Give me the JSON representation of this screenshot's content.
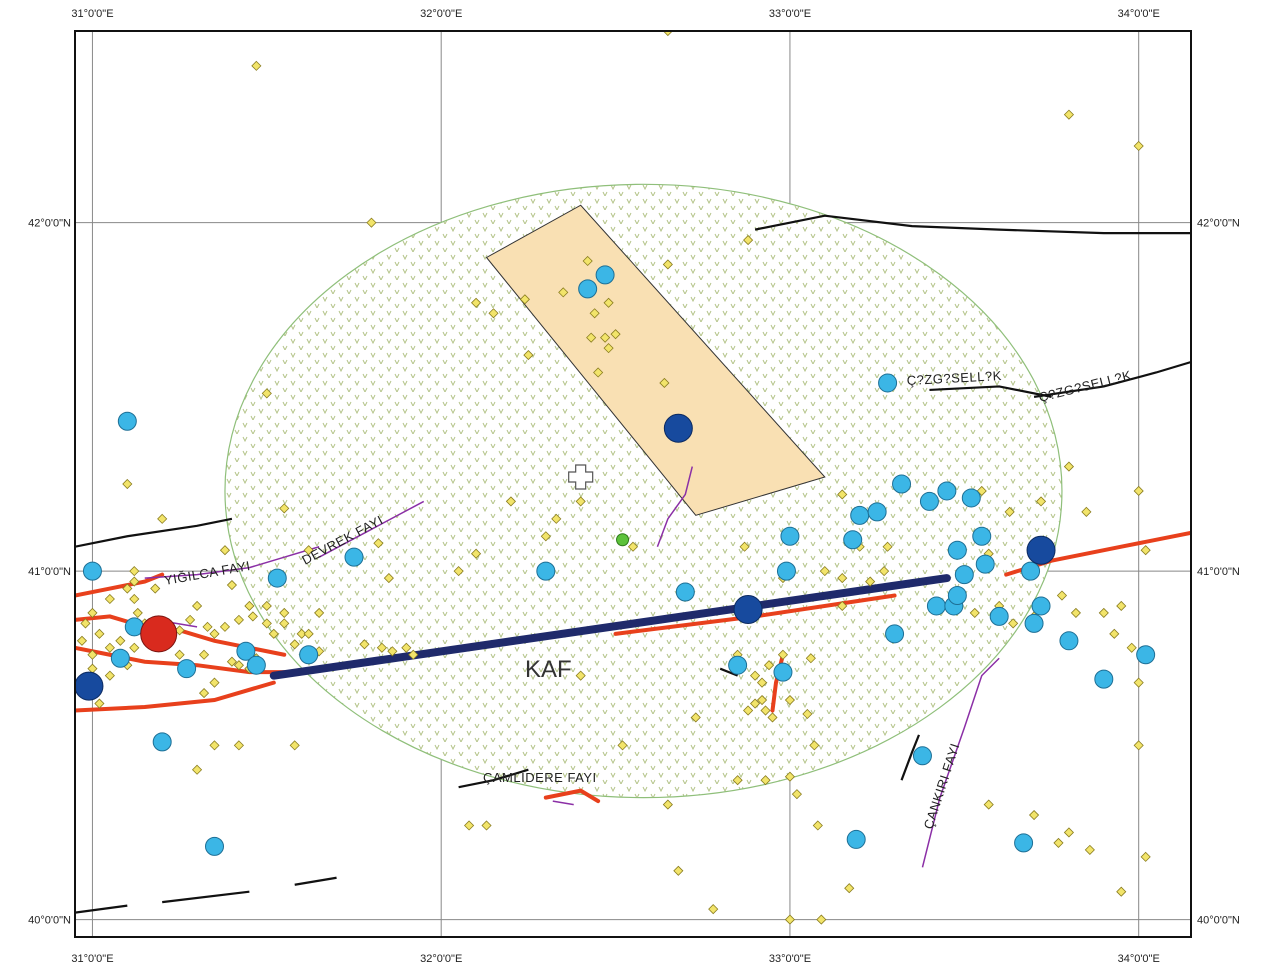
{
  "map": {
    "lon_range": [
      30.95,
      34.15
    ],
    "lat_range": [
      39.95,
      42.55
    ],
    "lon_ticks": [
      {
        "value": 31,
        "label": "31°0'0\"E"
      },
      {
        "value": 32,
        "label": "32°0'0\"E"
      },
      {
        "value": 33,
        "label": "33°0'0\"E"
      },
      {
        "value": 34,
        "label": "34°0'0\"E"
      }
    ],
    "lat_ticks": [
      {
        "value": 40,
        "label": "40°0'0\"N"
      },
      {
        "value": 41,
        "label": "41°0'0\"N"
      },
      {
        "value": 42,
        "label": "42°0'0\"N"
      }
    ],
    "colors": {
      "grid": "#888888",
      "buffer_stroke": "#8fbf7a",
      "buffer_dot": "#b5c48a",
      "rectangle_fill": "#f9e0b3",
      "kaf_line": "#1f2a6b",
      "red_fault": "#e8401c",
      "purple_fault": "#8b2fa6",
      "black_fault": "#111111",
      "small_quake": "#f2e46a",
      "medium_quake": "#3bb6e6",
      "large_quake": "#174a9e",
      "largest_quake": "#d92a1e",
      "green_point": "#5cc23a"
    },
    "labels": {
      "kaf": "KAF",
      "yigilca": "YIĞILCA FAYI",
      "devrek": "DEVREK FAYI",
      "camlidere": "ÇAMLIDERE FAYI",
      "cankiri": "ÇANKIRI FAYI",
      "cizgisellik_1": "Ç?ZG?SELL?K",
      "cizgisellik_2": "Ç?ZG?SELL?K"
    },
    "center_marker": {
      "lon": 32.4,
      "lat": 41.27
    },
    "green_point": {
      "lon": 32.52,
      "lat": 41.09
    },
    "buffer": {
      "center_lon": 32.58,
      "center_lat": 41.23,
      "radius_lon": 1.2,
      "radius_lat": 0.88
    },
    "rectangle": [
      {
        "lon": 32.13,
        "lat": 41.9
      },
      {
        "lon": 32.4,
        "lat": 42.05
      },
      {
        "lon": 33.1,
        "lat": 41.27
      },
      {
        "lon": 32.73,
        "lat": 41.16
      }
    ],
    "kaf_line": [
      {
        "lon": 31.52,
        "lat": 40.7
      },
      {
        "lon": 33.45,
        "lat": 40.98
      }
    ],
    "small_quakes": [
      [
        31.47,
        42.45
      ],
      [
        32.65,
        42.55
      ],
      [
        33.8,
        42.31
      ],
      [
        34.0,
        42.22
      ],
      [
        31.8,
        42.0
      ],
      [
        32.1,
        41.77
      ],
      [
        32.15,
        41.74
      ],
      [
        32.25,
        41.62
      ],
      [
        32.24,
        41.78
      ],
      [
        32.35,
        41.8
      ],
      [
        32.42,
        41.89
      ],
      [
        32.44,
        41.74
      ],
      [
        32.48,
        41.77
      ],
      [
        32.47,
        41.67
      ],
      [
        32.5,
        41.68
      ],
      [
        32.43,
        41.67
      ],
      [
        32.48,
        41.64
      ],
      [
        32.45,
        41.57
      ],
      [
        32.65,
        41.88
      ],
      [
        32.64,
        41.54
      ],
      [
        32.88,
        41.95
      ],
      [
        31.5,
        41.51
      ],
      [
        31.1,
        41.25
      ],
      [
        31.2,
        41.15
      ],
      [
        31.55,
        41.18
      ],
      [
        32.2,
        41.2
      ],
      [
        32.4,
        41.2
      ],
      [
        32.33,
        41.15
      ],
      [
        32.3,
        41.1
      ],
      [
        31.38,
        41.06
      ],
      [
        31.62,
        41.06
      ],
      [
        31.82,
        41.08
      ],
      [
        32.1,
        41.05
      ],
      [
        32.55,
        41.07
      ],
      [
        33.15,
        41.22
      ],
      [
        33.2,
        41.07
      ],
      [
        33.28,
        41.07
      ],
      [
        33.55,
        41.23
      ],
      [
        33.57,
        41.05
      ],
      [
        33.63,
        41.17
      ],
      [
        33.72,
        41.2
      ],
      [
        33.8,
        41.3
      ],
      [
        33.85,
        41.17
      ],
      [
        34.0,
        41.23
      ],
      [
        34.02,
        41.06
      ],
      [
        32.87,
        41.07
      ],
      [
        33.1,
        41.0
      ],
      [
        33.15,
        40.98
      ],
      [
        32.98,
        40.98
      ],
      [
        33.23,
        40.97
      ],
      [
        33.27,
        41.0
      ],
      [
        33.53,
        40.88
      ],
      [
        33.6,
        40.9
      ],
      [
        33.64,
        40.85
      ],
      [
        33.7,
        40.87
      ],
      [
        33.78,
        40.93
      ],
      [
        33.82,
        40.88
      ],
      [
        33.9,
        40.88
      ],
      [
        33.95,
        40.9
      ],
      [
        33.93,
        40.82
      ],
      [
        33.98,
        40.78
      ],
      [
        34.0,
        40.68
      ],
      [
        34.0,
        40.5
      ],
      [
        34.02,
        40.18
      ],
      [
        33.95,
        40.08
      ],
      [
        33.8,
        40.25
      ],
      [
        33.77,
        40.22
      ],
      [
        33.86,
        40.2
      ],
      [
        33.7,
        40.3
      ],
      [
        33.57,
        40.33
      ],
      [
        33.08,
        40.27
      ],
      [
        33.02,
        40.36
      ],
      [
        32.93,
        40.4
      ],
      [
        33.07,
        40.5
      ],
      [
        33.05,
        40.59
      ],
      [
        33.0,
        40.63
      ],
      [
        32.95,
        40.58
      ],
      [
        32.93,
        40.6
      ],
      [
        32.92,
        40.63
      ],
      [
        32.9,
        40.62
      ],
      [
        32.88,
        40.6
      ],
      [
        32.92,
        40.68
      ],
      [
        32.9,
        40.7
      ],
      [
        32.94,
        40.73
      ],
      [
        32.98,
        40.76
      ],
      [
        32.97,
        40.71
      ],
      [
        33.06,
        40.75
      ],
      [
        32.85,
        40.76
      ],
      [
        32.73,
        40.58
      ],
      [
        32.4,
        40.7
      ],
      [
        32.52,
        40.5
      ],
      [
        32.65,
        40.33
      ],
      [
        32.08,
        40.27
      ],
      [
        32.13,
        40.27
      ],
      [
        32.68,
        40.14
      ],
      [
        32.78,
        40.03
      ],
      [
        33.0,
        40.0
      ],
      [
        33.09,
        40.0
      ],
      [
        33.17,
        40.09
      ],
      [
        31.3,
        40.43
      ],
      [
        31.42,
        40.5
      ],
      [
        31.35,
        40.5
      ],
      [
        31.58,
        40.5
      ],
      [
        31.32,
        40.65
      ],
      [
        31.35,
        40.82
      ],
      [
        31.33,
        40.84
      ],
      [
        31.38,
        40.84
      ],
      [
        31.42,
        40.86
      ],
      [
        31.46,
        40.87
      ],
      [
        31.5,
        40.85
      ],
      [
        31.52,
        40.82
      ],
      [
        31.55,
        40.85
      ],
      [
        31.45,
        40.9
      ],
      [
        31.5,
        40.9
      ],
      [
        31.55,
        40.88
      ],
      [
        31.6,
        40.82
      ],
      [
        31.65,
        40.88
      ],
      [
        31.47,
        40.75
      ],
      [
        31.45,
        40.72
      ],
      [
        31.35,
        40.68
      ],
      [
        31.4,
        40.74
      ],
      [
        31.42,
        40.73
      ],
      [
        31.1,
        40.95
      ],
      [
        31.05,
        40.92
      ],
      [
        31.12,
        40.92
      ],
      [
        31.0,
        40.88
      ],
      [
        30.98,
        40.85
      ],
      [
        31.02,
        40.82
      ],
      [
        31.05,
        40.78
      ],
      [
        31.08,
        40.8
      ],
      [
        31.12,
        40.78
      ],
      [
        31.15,
        40.85
      ],
      [
        31.1,
        40.73
      ],
      [
        31.05,
        40.7
      ],
      [
        31.0,
        40.72
      ],
      [
        31.0,
        40.76
      ],
      [
        30.97,
        40.8
      ],
      [
        31.13,
        40.88
      ],
      [
        31.2,
        40.84
      ],
      [
        31.25,
        40.83
      ],
      [
        31.28,
        40.86
      ],
      [
        31.3,
        40.9
      ],
      [
        31.18,
        40.95
      ],
      [
        31.12,
        40.97
      ],
      [
        31.25,
        40.76
      ],
      [
        31.32,
        40.76
      ],
      [
        31.02,
        40.62
      ],
      [
        31.4,
        40.96
      ],
      [
        31.12,
        41.0
      ],
      [
        31.78,
        40.79
      ],
      [
        31.83,
        40.78
      ],
      [
        31.86,
        40.77
      ],
      [
        31.9,
        40.78
      ],
      [
        31.92,
        40.76
      ],
      [
        31.58,
        40.79
      ],
      [
        31.62,
        40.82
      ],
      [
        31.65,
        40.77
      ],
      [
        31.85,
        40.98
      ],
      [
        32.05,
        41.0
      ],
      [
        33.0,
        40.41
      ],
      [
        32.85,
        40.4
      ],
      [
        33.15,
        40.9
      ]
    ],
    "medium_quakes": [
      [
        31.1,
        41.43
      ],
      [
        31.0,
        41.0
      ],
      [
        31.12,
        40.84
      ],
      [
        31.08,
        40.75
      ],
      [
        31.27,
        40.72
      ],
      [
        31.44,
        40.77
      ],
      [
        31.47,
        40.73
      ],
      [
        31.62,
        40.76
      ],
      [
        31.53,
        40.98
      ],
      [
        31.75,
        41.04
      ],
      [
        31.2,
        40.51
      ],
      [
        31.35,
        40.21
      ],
      [
        32.3,
        41.0
      ],
      [
        32.42,
        41.81
      ],
      [
        32.47,
        41.85
      ],
      [
        32.7,
        40.94
      ],
      [
        32.68,
        41.41
      ],
      [
        32.85,
        40.73
      ],
      [
        33.0,
        41.1
      ],
      [
        32.99,
        41.0
      ],
      [
        32.98,
        40.71
      ],
      [
        33.18,
        41.09
      ],
      [
        33.2,
        41.16
      ],
      [
        33.25,
        41.17
      ],
      [
        33.28,
        41.54
      ],
      [
        33.3,
        40.82
      ],
      [
        33.32,
        41.25
      ],
      [
        33.4,
        41.2
      ],
      [
        33.45,
        41.23
      ],
      [
        33.48,
        41.06
      ],
      [
        33.5,
        40.99
      ],
      [
        33.52,
        41.21
      ],
      [
        33.55,
        41.1
      ],
      [
        33.56,
        41.02
      ],
      [
        33.6,
        40.87
      ],
      [
        33.42,
        40.9
      ],
      [
        33.47,
        40.9
      ],
      [
        33.48,
        40.93
      ],
      [
        33.69,
        41.0
      ],
      [
        33.7,
        40.85
      ],
      [
        33.72,
        40.9
      ],
      [
        33.8,
        40.8
      ],
      [
        33.9,
        40.69
      ],
      [
        34.02,
        40.76
      ],
      [
        33.19,
        40.23
      ],
      [
        33.67,
        40.22
      ],
      [
        33.38,
        40.47
      ]
    ],
    "large_quakes": [
      [
        30.99,
        40.67
      ],
      [
        32.68,
        41.41
      ],
      [
        32.88,
        40.89
      ],
      [
        33.72,
        41.06
      ]
    ],
    "largest_quakes": [
      [
        31.19,
        40.82
      ]
    ],
    "red_faults": [
      [
        [
          30.95,
          40.93
        ],
        [
          31.05,
          40.95
        ],
        [
          31.15,
          40.97
        ],
        [
          31.2,
          40.99
        ]
      ],
      [
        [
          30.95,
          40.86
        ],
        [
          31.05,
          40.87
        ],
        [
          31.15,
          40.84
        ],
        [
          31.25,
          40.83
        ],
        [
          31.35,
          40.8
        ],
        [
          31.45,
          40.78
        ],
        [
          31.55,
          40.76
        ]
      ],
      [
        [
          30.95,
          40.78
        ],
        [
          31.05,
          40.76
        ],
        [
          31.15,
          40.74
        ],
        [
          31.3,
          40.73
        ],
        [
          31.45,
          40.71
        ],
        [
          31.6,
          40.71
        ]
      ],
      [
        [
          30.95,
          40.6
        ],
        [
          31.15,
          40.61
        ],
        [
          31.35,
          40.63
        ],
        [
          31.52,
          40.68
        ]
      ],
      [
        [
          32.5,
          40.82
        ],
        [
          32.9,
          40.87
        ],
        [
          33.3,
          40.93
        ]
      ],
      [
        [
          33.62,
          40.99
        ],
        [
          33.75,
          41.03
        ],
        [
          33.95,
          41.07
        ],
        [
          34.15,
          41.11
        ]
      ],
      [
        [
          32.98,
          40.76
        ],
        [
          32.96,
          40.68
        ],
        [
          32.95,
          40.6
        ]
      ],
      [
        [
          32.3,
          40.35
        ],
        [
          32.4,
          40.37
        ],
        [
          32.45,
          40.34
        ]
      ]
    ],
    "purple_faults": [
      [
        [
          31.15,
          40.98
        ],
        [
          31.3,
          40.99
        ],
        [
          31.45,
          41.01
        ],
        [
          31.55,
          41.04
        ],
        [
          31.65,
          41.07
        ]
      ],
      [
        [
          31.65,
          41.04
        ],
        [
          31.8,
          41.12
        ],
        [
          31.95,
          41.2
        ]
      ],
      [
        [
          32.62,
          41.07
        ],
        [
          32.65,
          41.15
        ],
        [
          32.7,
          41.22
        ],
        [
          32.72,
          41.3
        ]
      ],
      [
        [
          33.38,
          40.15
        ],
        [
          33.43,
          40.35
        ],
        [
          33.5,
          40.55
        ],
        [
          33.55,
          40.7
        ],
        [
          33.6,
          40.75
        ]
      ],
      [
        [
          31.18,
          40.86
        ],
        [
          31.3,
          40.84
        ]
      ],
      [
        [
          32.32,
          40.34
        ],
        [
          32.38,
          40.33
        ]
      ]
    ],
    "black_faults": [
      [
        [
          30.95,
          41.07
        ],
        [
          31.1,
          41.1
        ],
        [
          31.3,
          41.13
        ],
        [
          31.4,
          41.15
        ]
      ],
      [
        [
          32.9,
          41.98
        ],
        [
          33.1,
          42.02
        ],
        [
          33.35,
          41.99
        ],
        [
          33.6,
          41.98
        ],
        [
          33.9,
          41.97
        ],
        [
          34.15,
          41.97
        ]
      ],
      [
        [
          33.4,
          41.52
        ],
        [
          33.6,
          41.53
        ],
        [
          33.75,
          41.5
        ]
      ],
      [
        [
          33.7,
          41.5
        ],
        [
          33.9,
          41.53
        ],
        [
          34.05,
          41.57
        ],
        [
          34.15,
          41.6
        ]
      ],
      [
        [
          30.95,
          40.02
        ],
        [
          31.1,
          40.04
        ]
      ],
      [
        [
          31.2,
          40.05
        ],
        [
          31.45,
          40.08
        ]
      ],
      [
        [
          31.58,
          40.1
        ],
        [
          31.7,
          40.12
        ]
      ],
      [
        [
          32.05,
          40.38
        ],
        [
          32.15,
          40.4
        ],
        [
          32.25,
          40.43
        ]
      ],
      [
        [
          32.8,
          40.72
        ],
        [
          32.85,
          40.7
        ]
      ],
      [
        [
          33.32,
          40.4
        ],
        [
          33.35,
          40.48
        ],
        [
          33.37,
          40.53
        ]
      ]
    ]
  }
}
